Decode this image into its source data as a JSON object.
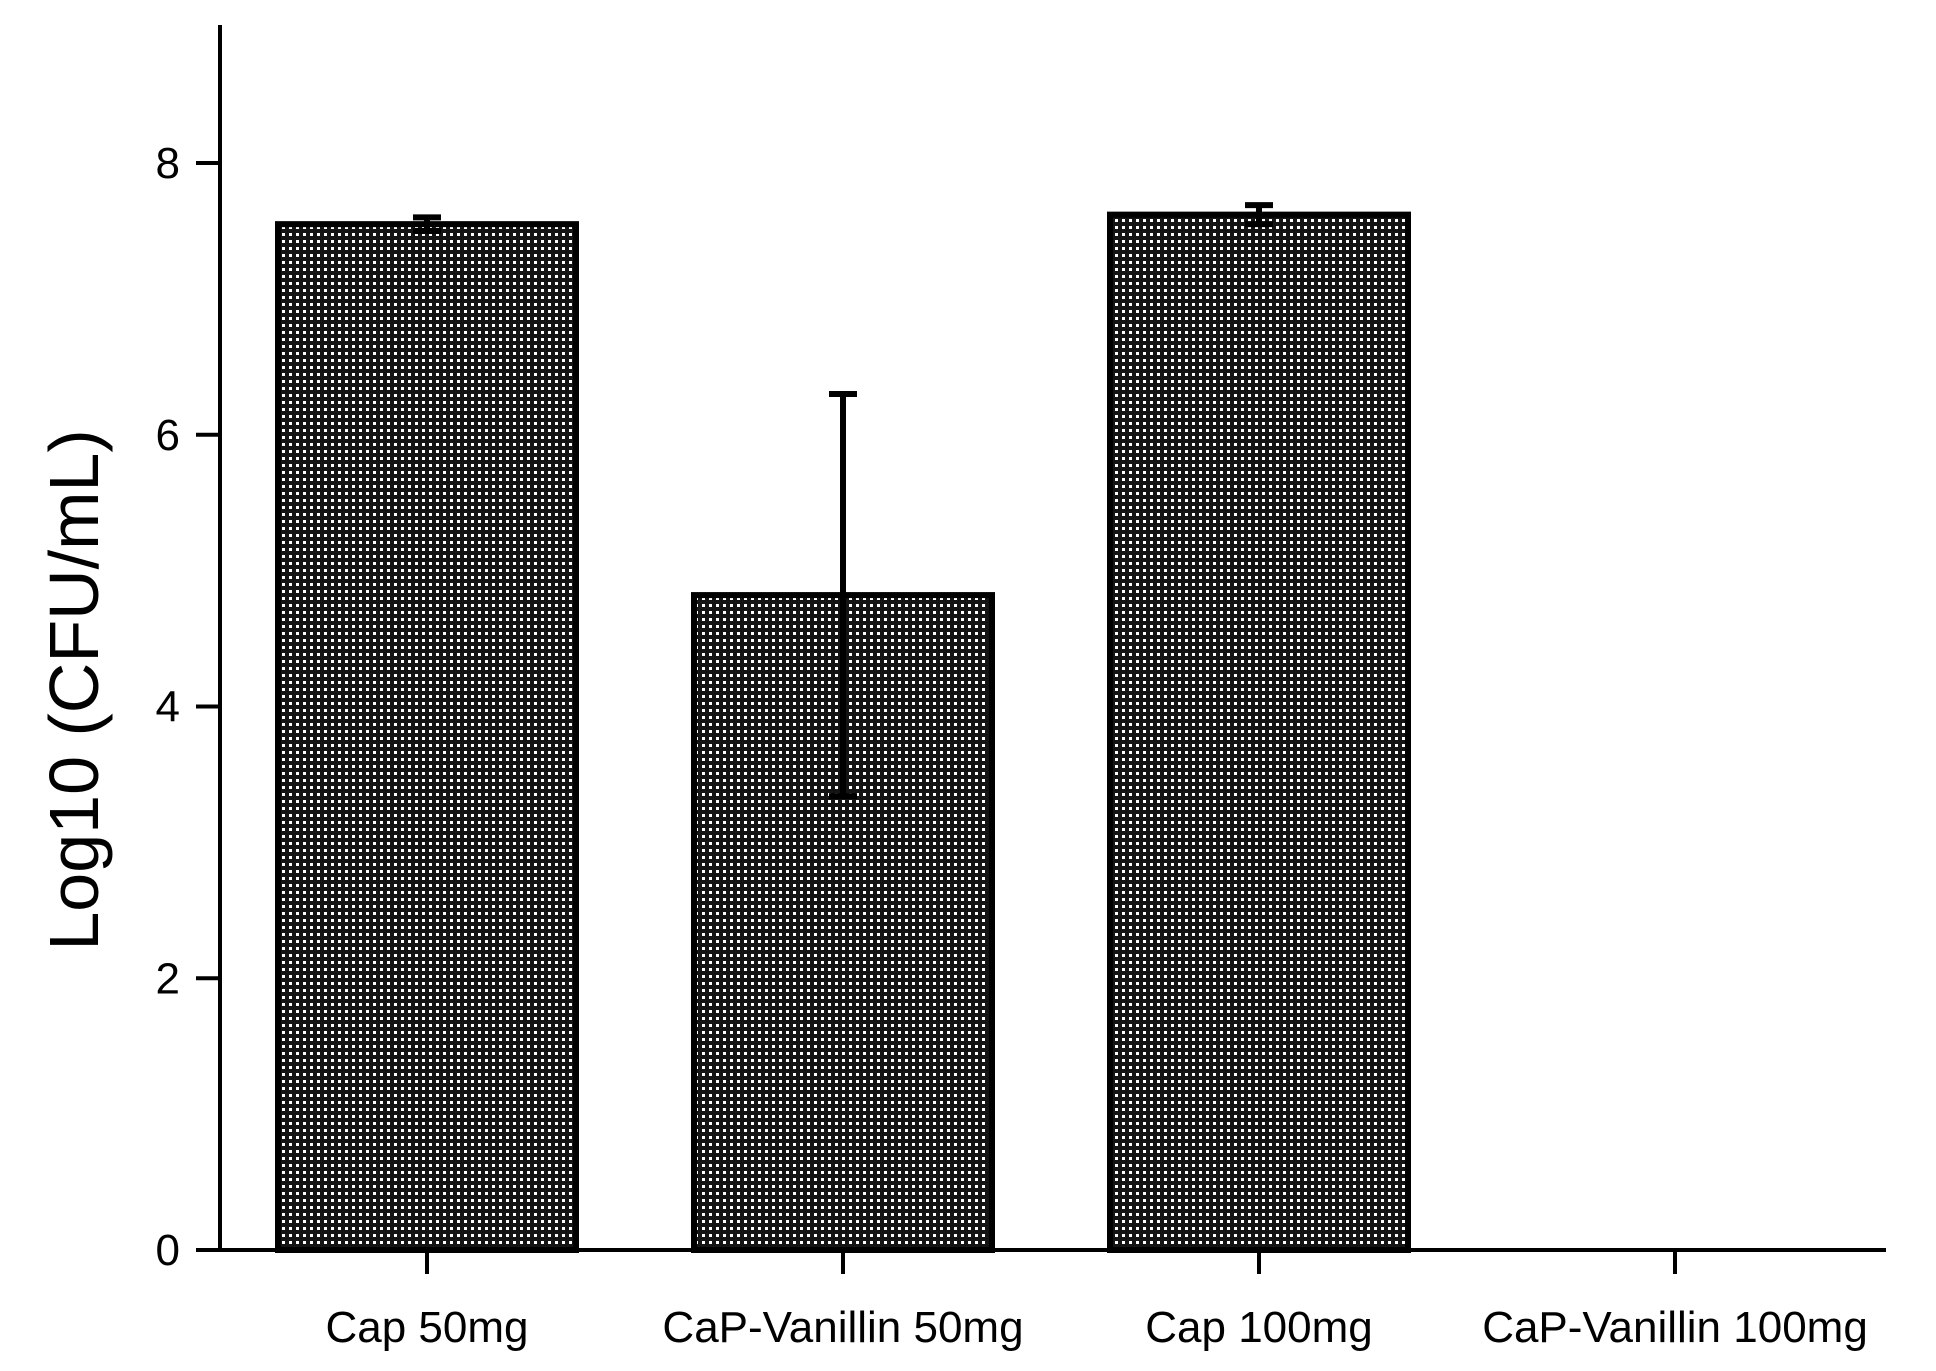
{
  "chart_data": {
    "type": "bar",
    "title": "",
    "xlabel": "",
    "ylabel": "Log10 (CFU/mL)",
    "categories": [
      "Cap 50mg",
      "CaP-Vanillin 50mg",
      "Cap 100mg",
      "CaP-Vanillin 100mg"
    ],
    "values": [
      7.55,
      4.82,
      7.62,
      0
    ],
    "error_bars": [
      0.05,
      1.48,
      0.07,
      0
    ],
    "ylim": [
      0,
      9
    ],
    "yticks": [
      0,
      2,
      4,
      6,
      8
    ],
    "ytick_labels": [
      "0",
      "2",
      "4",
      "6",
      "8"
    ],
    "grid": false,
    "bar_fill": "#1a1a1a",
    "bar_pattern": "dotted-grid"
  }
}
